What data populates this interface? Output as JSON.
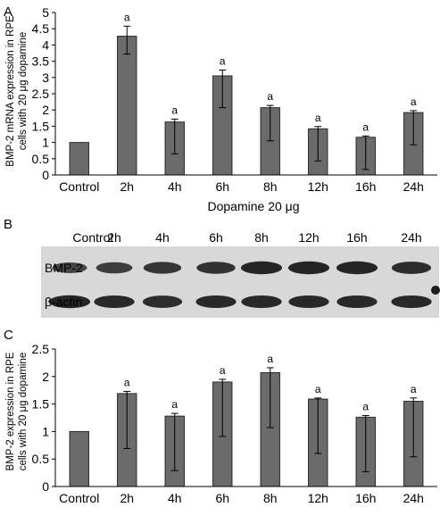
{
  "figure": {
    "panel_a_letter": "A",
    "panel_b_letter": "B",
    "panel_c_letter": "C"
  },
  "colors": {
    "bar_fill": "#6b6b6b",
    "bar_stroke": "#2a2a2a",
    "axis": "#000000",
    "blot_bg": "#d8d8d8",
    "band": "#1c1c1c"
  },
  "chart_data": [
    {
      "type": "bar",
      "panel": "A",
      "categories": [
        "Control",
        "2h",
        "4h",
        "6h",
        "8h",
        "12h",
        "16h",
        "24h"
      ],
      "values": [
        1.0,
        4.27,
        1.63,
        3.05,
        2.07,
        1.42,
        1.16,
        1.92
      ],
      "error_high": [
        1.0,
        4.58,
        1.72,
        3.23,
        2.14,
        1.49,
        1.2,
        1.98
      ],
      "error_low": [
        1.0,
        3.72,
        0.65,
        2.07,
        1.05,
        0.43,
        0.17,
        0.93
      ],
      "annotations": [
        "",
        "a",
        "a",
        "a",
        "a",
        "a",
        "a",
        "a"
      ],
      "ylabel": "BMP-2 mRNA expression in RPE cells with 20 μg dopamine",
      "ylabel_lines": [
        "BMP-2 mRNA expression in RPE",
        "cells with 20 μg dopamine"
      ],
      "xlabel": "Dopamine 20 μg",
      "ylim": [
        0,
        5
      ],
      "yticks": [
        0,
        0.5,
        1,
        1.5,
        2,
        2.5,
        3,
        3.5,
        4,
        4.5,
        5
      ],
      "ytick_labels": [
        "0",
        "0.5",
        "1",
        "1.5",
        "2",
        "2.5",
        "3",
        "3.5",
        "4",
        "4.5",
        "5"
      ],
      "grid": false
    },
    {
      "type": "bar",
      "panel": "C",
      "categories": [
        "Control",
        "2h",
        "4h",
        "6h",
        "8h",
        "12h",
        "16h",
        "24h"
      ],
      "values": [
        1.0,
        1.69,
        1.28,
        1.9,
        2.07,
        1.59,
        1.26,
        1.55
      ],
      "error_high": [
        1.0,
        1.73,
        1.33,
        1.95,
        2.16,
        1.61,
        1.29,
        1.61
      ],
      "error_low": [
        1.0,
        0.69,
        0.29,
        0.91,
        1.07,
        0.6,
        0.27,
        0.54
      ],
      "annotations": [
        "",
        "a",
        "a",
        "a",
        "a",
        "a",
        "a",
        "a"
      ],
      "ylabel": "BMP-2 expression in RPE cells with 20 μg dopamine",
      "ylabel_lines": [
        "BMP-2 expression in RPE",
        "cells with 20 μg dopamine"
      ],
      "ylim": [
        0,
        2.5
      ],
      "yticks": [
        0,
        0.5,
        1,
        1.5,
        2,
        2.5
      ],
      "ytick_labels": [
        "0",
        "0.5",
        "1",
        "1.5",
        "2",
        "2.5"
      ],
      "grid": false
    }
  ],
  "blot": {
    "lanes": [
      "Control",
      "2h",
      "4h",
      "6h",
      "8h",
      "12h",
      "16h",
      "24h"
    ],
    "rows": [
      {
        "label": "BMP-2",
        "intensity": [
          0.5,
          0.6,
          0.7,
          0.75,
          0.9,
          0.9,
          0.9,
          0.8
        ]
      },
      {
        "label": "β-actin",
        "intensity": [
          0.9,
          0.85,
          0.8,
          0.85,
          0.85,
          0.85,
          0.85,
          0.85
        ]
      }
    ]
  }
}
